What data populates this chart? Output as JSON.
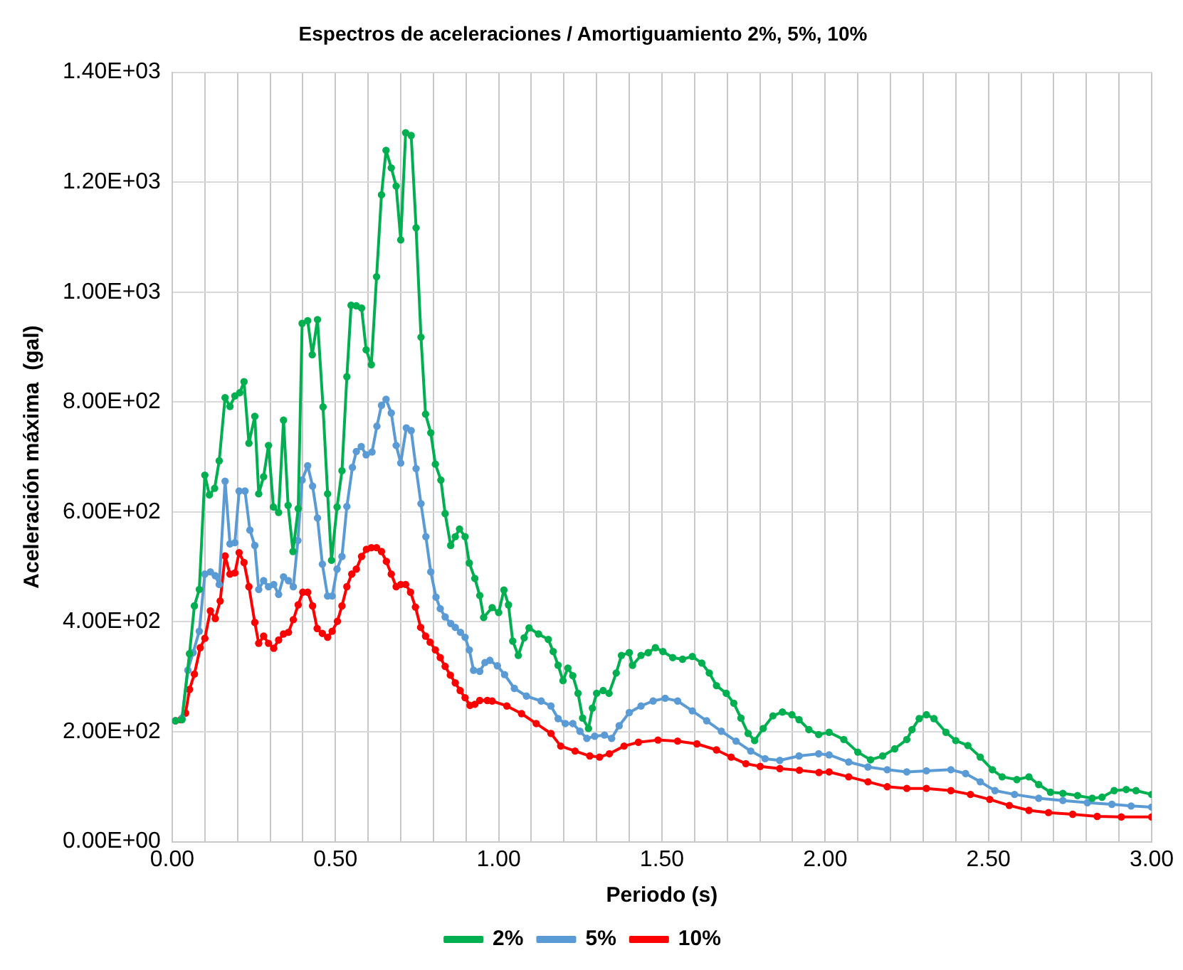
{
  "chart_data": {
    "type": "line",
    "title": "Espectros de aceleraciones / Amortiguamiento 2%, 5%, 10%",
    "xlabel": "Periodo (s)",
    "ylabel": "Aceleración máxima  (gal)",
    "xlim": [
      0,
      3
    ],
    "ylim": [
      0,
      1400
    ],
    "xticks": [
      {
        "value": 0,
        "label": "0.00"
      },
      {
        "value": 0.1,
        "label": null
      },
      {
        "value": 0.2,
        "label": null
      },
      {
        "value": 0.3,
        "label": null
      },
      {
        "value": 0.4,
        "label": null
      },
      {
        "value": 0.5,
        "label": "0.50"
      },
      {
        "value": 0.6,
        "label": null
      },
      {
        "value": 0.7,
        "label": null
      },
      {
        "value": 0.8,
        "label": null
      },
      {
        "value": 0.9,
        "label": null
      },
      {
        "value": 1,
        "label": "1.00"
      },
      {
        "value": 1.1,
        "label": null
      },
      {
        "value": 1.2,
        "label": null
      },
      {
        "value": 1.3,
        "label": null
      },
      {
        "value": 1.4,
        "label": null
      },
      {
        "value": 1.5,
        "label": "1.50"
      },
      {
        "value": 1.6,
        "label": null
      },
      {
        "value": 1.7,
        "label": null
      },
      {
        "value": 1.8,
        "label": null
      },
      {
        "value": 1.9,
        "label": null
      },
      {
        "value": 2,
        "label": "2.00"
      },
      {
        "value": 2.1,
        "label": null
      },
      {
        "value": 2.2,
        "label": null
      },
      {
        "value": 2.3,
        "label": null
      },
      {
        "value": 2.4,
        "label": null
      },
      {
        "value": 2.5,
        "label": "2.50"
      },
      {
        "value": 2.6,
        "label": null
      },
      {
        "value": 2.7,
        "label": null
      },
      {
        "value": 2.8,
        "label": null
      },
      {
        "value": 2.9,
        "label": null
      },
      {
        "value": 3,
        "label": "3.00"
      }
    ],
    "yticks": [
      {
        "value": 0,
        "label": "0.00E+00"
      },
      {
        "value": 200,
        "label": "2.00E+02"
      },
      {
        "value": 400,
        "label": "4.00E+02"
      },
      {
        "value": 600,
        "label": "6.00E+02"
      },
      {
        "value": 800,
        "label": "8.00E+02"
      },
      {
        "value": 1000,
        "label": "1.00E+03"
      },
      {
        "value": 1200,
        "label": "1.20E+03"
      },
      {
        "value": 1400,
        "label": "1.40E+03"
      }
    ],
    "grid": true,
    "legend": "bottom",
    "marker": "circle",
    "line_style": "solid",
    "series": [
      {
        "name": "2%",
        "color": "#00b050",
        "x": [
          0.01,
          0.03,
          0.053,
          0.068,
          0.083,
          0.1,
          0.114,
          0.13,
          0.144,
          0.162,
          0.177,
          0.192,
          0.207,
          0.22,
          0.235,
          0.253,
          0.265,
          0.28,
          0.295,
          0.31,
          0.326,
          0.341,
          0.355,
          0.37,
          0.386,
          0.398,
          0.415,
          0.429,
          0.445,
          0.462,
          0.476,
          0.488,
          0.505,
          0.52,
          0.535,
          0.548,
          0.564,
          0.58,
          0.594,
          0.61,
          0.626,
          0.641,
          0.655,
          0.671,
          0.686,
          0.7,
          0.715,
          0.732,
          0.747,
          0.762,
          0.776,
          0.792,
          0.806,
          0.823,
          0.836,
          0.853,
          0.867,
          0.88,
          0.897,
          0.91,
          0.927,
          0.942,
          0.954,
          0.98,
          1.0,
          1.016,
          1.03,
          1.043,
          1.06,
          1.078,
          1.093,
          1.122,
          1.152,
          1.167,
          1.182,
          1.197,
          1.212,
          1.227,
          1.243,
          1.257,
          1.275,
          1.287,
          1.3,
          1.32,
          1.338,
          1.36,
          1.376,
          1.4,
          1.41,
          1.436,
          1.458,
          1.48,
          1.503,
          1.533,
          1.563,
          1.593,
          1.622,
          1.645,
          1.667,
          1.697,
          1.72,
          1.742,
          1.764,
          1.784,
          1.81,
          1.84,
          1.869,
          1.898,
          1.92,
          1.95,
          1.98,
          2.012,
          2.057,
          2.1,
          2.139,
          2.176,
          2.213,
          2.25,
          2.266,
          2.288,
          2.31,
          2.333,
          2.37,
          2.4,
          2.437,
          2.475,
          2.512,
          2.542,
          2.587,
          2.624,
          2.654,
          2.69,
          2.728,
          2.773,
          2.818,
          2.848,
          2.885,
          2.922,
          2.952,
          3.0
        ],
        "values": [
          220,
          222,
          342,
          429,
          459,
          667,
          631,
          643,
          693,
          808,
          792,
          811,
          817,
          837,
          725,
          774,
          633,
          664,
          721,
          609,
          599,
          767,
          612,
          528,
          606,
          943,
          948,
          886,
          950,
          791,
          633,
          512,
          609,
          675,
          846,
          976,
          975,
          971,
          895,
          868,
          1028,
          1177,
          1258,
          1226,
          1193,
          1095,
          1290,
          1285,
          1117,
          918,
          778,
          744,
          687,
          658,
          597,
          539,
          555,
          569,
          555,
          507,
          479,
          448,
          408,
          426,
          417,
          458,
          431,
          365,
          339,
          371,
          389,
          378,
          368,
          346,
          321,
          293,
          316,
          302,
          270,
          225,
          206,
          243,
          270,
          275,
          270,
          307,
          339,
          344,
          321,
          339,
          344,
          353,
          346,
          335,
          332,
          337,
          325,
          307,
          284,
          270,
          252,
          225,
          197,
          184,
          206,
          229,
          236,
          231,
          222,
          204,
          195,
          199,
          186,
          163,
          149,
          156,
          169,
          186,
          204,
          224,
          231,
          224,
          199,
          184,
          175,
          154,
          131,
          118,
          113,
          118,
          104,
          90,
          88,
          84,
          79,
          81,
          93,
          95,
          93,
          86
        ]
      },
      {
        "name": "5%",
        "color": "#5b9bd5",
        "x": [
          0.01,
          0.03,
          0.048,
          0.064,
          0.083,
          0.1,
          0.117,
          0.132,
          0.144,
          0.162,
          0.177,
          0.192,
          0.205,
          0.223,
          0.238,
          0.253,
          0.265,
          0.28,
          0.295,
          0.311,
          0.326,
          0.341,
          0.356,
          0.371,
          0.385,
          0.398,
          0.415,
          0.43,
          0.445,
          0.46,
          0.476,
          0.49,
          0.505,
          0.52,
          0.535,
          0.552,
          0.564,
          0.579,
          0.594,
          0.612,
          0.627,
          0.641,
          0.655,
          0.671,
          0.686,
          0.7,
          0.717,
          0.732,
          0.747,
          0.762,
          0.777,
          0.792,
          0.808,
          0.821,
          0.836,
          0.853,
          0.867,
          0.883,
          0.897,
          0.91,
          0.923,
          0.942,
          0.958,
          0.973,
          0.996,
          1.018,
          1.048,
          1.085,
          1.13,
          1.16,
          1.182,
          1.204,
          1.227,
          1.249,
          1.27,
          1.294,
          1.324,
          1.346,
          1.369,
          1.4,
          1.436,
          1.473,
          1.51,
          1.548,
          1.593,
          1.637,
          1.682,
          1.727,
          1.772,
          1.816,
          1.861,
          1.92,
          1.98,
          2.012,
          2.072,
          2.131,
          2.19,
          2.25,
          2.31,
          2.385,
          2.43,
          2.475,
          2.52,
          2.58,
          2.654,
          2.728,
          2.803,
          2.878,
          2.937,
          3.0
        ],
        "values": [
          220,
          225,
          312,
          344,
          383,
          487,
          491,
          484,
          468,
          656,
          542,
          544,
          638,
          638,
          567,
          539,
          459,
          475,
          464,
          468,
          450,
          482,
          475,
          464,
          548,
          658,
          684,
          647,
          589,
          505,
          447,
          447,
          496,
          519,
          610,
          681,
          710,
          719,
          704,
          709,
          756,
          794,
          805,
          780,
          721,
          689,
          753,
          748,
          679,
          615,
          555,
          491,
          445,
          424,
          409,
          397,
          390,
          381,
          372,
          349,
          312,
          310,
          326,
          330,
          320,
          304,
          279,
          265,
          256,
          247,
          224,
          215,
          215,
          201,
          188,
          192,
          194,
          188,
          211,
          235,
          247,
          256,
          261,
          256,
          238,
          220,
          201,
          183,
          165,
          151,
          148,
          156,
          160,
          158,
          145,
          136,
          131,
          127,
          129,
          131,
          124,
          109,
          93,
          86,
          79,
          75,
          71,
          68,
          65,
          63
        ]
      },
      {
        "name": "10%",
        "color": "#ff0000",
        "x": [
          0.01,
          0.026,
          0.041,
          0.053,
          0.068,
          0.086,
          0.1,
          0.117,
          0.132,
          0.147,
          0.162,
          0.177,
          0.192,
          0.205,
          0.22,
          0.235,
          0.253,
          0.265,
          0.28,
          0.295,
          0.311,
          0.326,
          0.341,
          0.356,
          0.371,
          0.386,
          0.4,
          0.415,
          0.43,
          0.444,
          0.46,
          0.476,
          0.49,
          0.506,
          0.52,
          0.535,
          0.55,
          0.564,
          0.58,
          0.595,
          0.61,
          0.626,
          0.641,
          0.656,
          0.671,
          0.686,
          0.7,
          0.715,
          0.73,
          0.745,
          0.761,
          0.776,
          0.79,
          0.806,
          0.821,
          0.836,
          0.852,
          0.867,
          0.882,
          0.897,
          0.912,
          0.927,
          0.942,
          0.965,
          0.98,
          1.025,
          1.07,
          1.115,
          1.16,
          1.19,
          1.234,
          1.279,
          1.309,
          1.339,
          1.384,
          1.428,
          1.488,
          1.548,
          1.607,
          1.667,
          1.712,
          1.757,
          1.801,
          1.861,
          1.921,
          1.981,
          2.012,
          2.072,
          2.131,
          2.19,
          2.25,
          2.31,
          2.385,
          2.445,
          2.504,
          2.564,
          2.624,
          2.684,
          2.758,
          2.833,
          2.907,
          3.0
        ],
        "values": [
          220,
          222,
          234,
          277,
          305,
          353,
          370,
          420,
          406,
          438,
          520,
          487,
          489,
          526,
          508,
          464,
          399,
          361,
          374,
          361,
          352,
          367,
          378,
          381,
          404,
          431,
          454,
          454,
          429,
          388,
          379,
          372,
          383,
          401,
          429,
          464,
          487,
          496,
          519,
          532,
          535,
          535,
          528,
          510,
          487,
          464,
          468,
          468,
          454,
          427,
          390,
          374,
          363,
          349,
          335,
          319,
          303,
          289,
          275,
          262,
          248,
          250,
          257,
          257,
          256,
          247,
          233,
          215,
          197,
          174,
          165,
          156,
          154,
          160,
          174,
          181,
          185,
          183,
          178,
          167,
          154,
          142,
          137,
          133,
          130,
          126,
          127,
          118,
          109,
          100,
          97,
          97,
          93,
          86,
          77,
          66,
          57,
          53,
          50,
          46,
          45,
          45
        ]
      }
    ]
  }
}
